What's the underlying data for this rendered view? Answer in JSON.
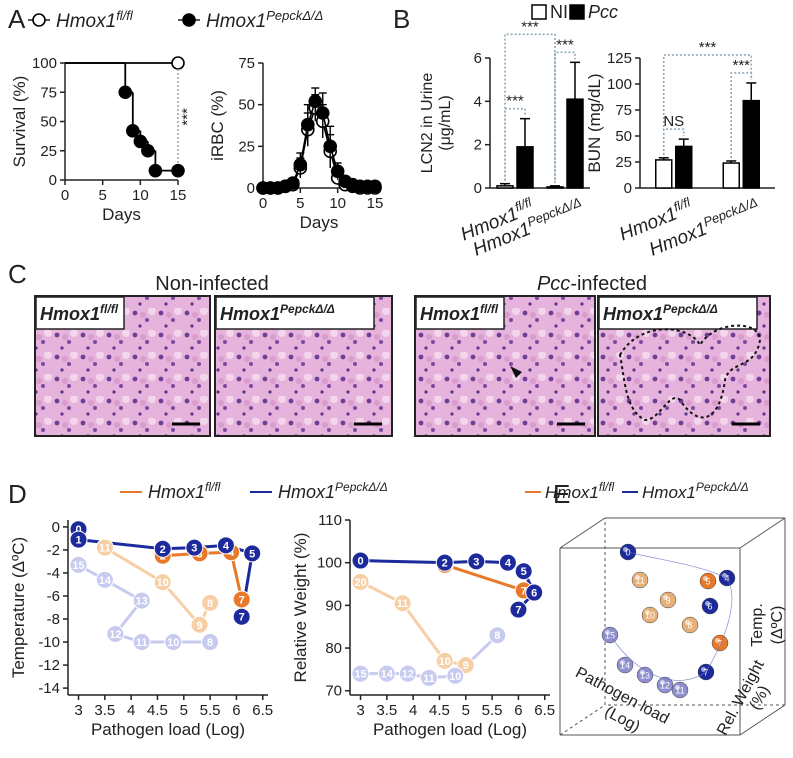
{
  "panel_labels": [
    "A",
    "B",
    "C",
    "D",
    "E"
  ],
  "chart_data": [
    {
      "type": "step",
      "ylabel": "Survival (%)",
      "xlabel": "Days",
      "xlim": [
        0,
        15
      ],
      "xticks": [
        0,
        5,
        10,
        15
      ],
      "ylim": [
        0,
        100
      ],
      "yticks": [
        0,
        25,
        50,
        75,
        100
      ],
      "series": [
        {
          "name": "Hmox1",
          "name_sup": "fl/fl",
          "color": "#000000",
          "marker": "open",
          "x": [
            0,
            15
          ],
          "values": [
            100,
            100
          ]
        },
        {
          "name": "Hmox1",
          "name_sup": "PepckΔ/Δ",
          "color": "#000000",
          "marker": "filled",
          "x": [
            0,
            8,
            9,
            10,
            11,
            12,
            15
          ],
          "values": [
            100,
            75,
            42,
            33,
            25,
            8,
            8
          ]
        }
      ],
      "annotations": [
        "***"
      ]
    },
    {
      "type": "line",
      "ylabel": "iRBC (%)",
      "xlabel": "Days",
      "xlim": [
        0,
        15
      ],
      "xticks": [
        0,
        5,
        10,
        15
      ],
      "ylim": [
        0,
        75
      ],
      "yticks": [
        0,
        25,
        50,
        75
      ],
      "series": [
        {
          "color": "#000000",
          "marker": "open",
          "x": [
            0,
            1,
            2,
            3,
            4,
            5,
            6,
            7,
            8,
            9,
            10,
            11,
            12,
            13,
            14,
            15
          ],
          "values": [
            0,
            0,
            0,
            1,
            2,
            12,
            35,
            48,
            40,
            22,
            6,
            2,
            1,
            0,
            0,
            0
          ],
          "errors": [
            0,
            0,
            0,
            1,
            2,
            6,
            10,
            8,
            10,
            10,
            4,
            2,
            1,
            0,
            0,
            0
          ]
        },
        {
          "color": "#000000",
          "marker": "filled",
          "x": [
            0,
            1,
            2,
            3,
            4,
            5,
            6,
            7,
            8,
            9,
            10,
            11,
            12,
            13,
            14,
            15
          ],
          "values": [
            0,
            0,
            0,
            1,
            3,
            14,
            38,
            52,
            45,
            25,
            10,
            4,
            2,
            1,
            1,
            1
          ],
          "errors": [
            0,
            0,
            0,
            1,
            2,
            7,
            12,
            8,
            12,
            12,
            5,
            2,
            1,
            1,
            0,
            0
          ]
        }
      ]
    },
    {
      "type": "bar",
      "ylabel": "LCN2 in Urine",
      "ylabel2": "(μg/mL)",
      "categories": [
        "Hmox1",
        "Hmox1"
      ],
      "category_sups": [
        "fl/fl",
        "PepckΔ/Δ"
      ],
      "ylim": [
        0,
        6
      ],
      "yticks": [
        0,
        2,
        4,
        6
      ],
      "series": [
        {
          "name": "NI",
          "color": "#ffffff",
          "values": [
            0.1,
            0.05
          ],
          "errors": [
            0.1,
            0.05
          ]
        },
        {
          "name": "Pcc",
          "color": "#000000",
          "values": [
            1.9,
            4.1
          ],
          "errors": [
            1.3,
            1.7
          ]
        }
      ],
      "annotations": [
        "***",
        "***",
        "***"
      ]
    },
    {
      "type": "bar",
      "ylabel": "BUN (mg/dL)",
      "categories": [
        "Hmox1",
        "Hmox1"
      ],
      "category_sups": [
        "fl/fl",
        "PepckΔ/Δ"
      ],
      "ylim": [
        0,
        125
      ],
      "yticks": [
        0,
        25,
        50,
        75,
        100,
        125
      ],
      "series": [
        {
          "color": "#ffffff",
          "values": [
            27,
            24
          ],
          "errors": [
            2,
            2
          ]
        },
        {
          "color": "#000000",
          "values": [
            40,
            84
          ],
          "errors": [
            7,
            17
          ]
        }
      ],
      "annotations": [
        "NS",
        "***",
        "***"
      ]
    },
    {
      "type": "trajectory",
      "ylabel": "Temperature (ΔºC)",
      "xlabel": "Pathogen load (Log)",
      "xlim": [
        2.8,
        6.6
      ],
      "xticks": [
        3,
        3.5,
        4,
        4.5,
        5,
        5.5,
        6,
        6.5
      ],
      "ylim": [
        -14.6,
        0.6
      ],
      "yticks": [
        0,
        -2,
        -4,
        -6,
        -8,
        -10,
        -12,
        -14
      ],
      "series": [
        {
          "color": "#f6cfa5",
          "x": [
            5.5,
            5.3,
            4.6,
            3.5
          ],
          "values": [
            -6.6,
            -8.5,
            -4.8,
            -1.8
          ],
          "days": [
            8,
            9,
            10,
            11
          ]
        },
        {
          "color": "#c7cbef",
          "x": [
            5.5,
            4.8,
            4.2,
            3.7,
            4.2,
            3.5,
            3.0
          ],
          "values": [
            -10,
            -10,
            -10,
            -9.3,
            -6.4,
            -4.6,
            -3.3
          ],
          "days": [
            8,
            10,
            11,
            12,
            13,
            14,
            15
          ]
        },
        {
          "name": "Hmox1",
          "name_sup": "fl/fl",
          "color": "#e8782a",
          "x": [
            4.6,
            5.3,
            5.9,
            6.1
          ],
          "values": [
            -2.5,
            -2.3,
            -2.2,
            -6.3
          ],
          "days": [
            2,
            3,
            4,
            7
          ]
        },
        {
          "name": "Hmox1",
          "name_sup": "PepckΔ/Δ",
          "color": "#1c2a9c",
          "x": [
            3.0,
            3.0,
            4.6,
            5.2,
            5.8,
            6.3,
            6.1
          ],
          "values": [
            -0.2,
            -1.1,
            -1.9,
            -1.8,
            -1.6,
            -2.3,
            -7.8
          ],
          "days": [
            0,
            1,
            2,
            3,
            4,
            5,
            7
          ]
        }
      ]
    },
    {
      "type": "trajectory",
      "ylabel": "Relative Weight (%)",
      "xlabel": "Pathogen load (Log)",
      "xlim": [
        2.8,
        6.6
      ],
      "xticks": [
        3,
        3.5,
        4,
        4.5,
        5,
        5.5,
        6,
        6.5
      ],
      "ylim": [
        69,
        110
      ],
      "yticks": [
        70,
        80,
        90,
        100,
        110
      ],
      "series": [
        {
          "color": "#f6cfa5",
          "x": [
            3.0,
            3.8,
            4.6,
            5.0
          ],
          "values": [
            95.5,
            90.5,
            77,
            76
          ],
          "days": [
            20,
            11,
            10,
            9
          ]
        },
        {
          "color": "#c7cbef",
          "x": [
            5.6,
            4.8,
            4.3,
            3.9,
            3.5,
            3.0
          ],
          "values": [
            83,
            73.5,
            73,
            74,
            74,
            74
          ],
          "days": [
            8,
            10,
            11,
            12,
            14,
            15
          ]
        },
        {
          "color": "#e8782a",
          "x": [
            4.6,
            6.1
          ],
          "values": [
            99.5,
            93.5
          ],
          "days": [
            2,
            7
          ]
        },
        {
          "color": "#1c2a9c",
          "x": [
            3.0,
            4.6,
            5.2,
            5.8,
            6.1,
            6.3,
            6.0
          ],
          "values": [
            100.5,
            100,
            100.3,
            100,
            98,
            93,
            89
          ],
          "days": [
            0,
            2,
            3,
            4,
            5,
            6,
            7
          ]
        }
      ]
    }
  ],
  "panel_c": {
    "title_left": "Non-infected",
    "title_right_italic": "Pcc",
    "title_right": "-infected",
    "images": [
      {
        "label": "Hmox1",
        "label_sup": "fl/fl"
      },
      {
        "label": "Hmox1",
        "label_sup": "PepckΔ/Δ"
      },
      {
        "label": "Hmox1",
        "label_sup": "fl/fl"
      },
      {
        "label": "Hmox1",
        "label_sup": "PepckΔ/Δ"
      }
    ]
  },
  "panel_e": {
    "legend": [
      {
        "name": "Hmox1",
        "name_sup": "fl/fl",
        "color": "#e8782a"
      },
      {
        "name": "Hmox1",
        "name_sup": "PepckΔ/Δ",
        "color": "#1c2a9c"
      }
    ],
    "axis_labels": [
      "Pathogen load",
      "(Log)",
      "Rel. Weight",
      "(%)",
      "Temp.",
      "(ΔºC)"
    ],
    "spheres": [
      {
        "label": "0",
        "color": "#1c2a9c"
      },
      {
        "label": "4",
        "color": "#1c2a9c"
      },
      {
        "label": "5",
        "color": "#e8782a"
      },
      {
        "label": "6",
        "color": "#1c2a9c"
      },
      {
        "label": "7",
        "color": "#e8782a"
      },
      {
        "label": "7",
        "color": "#1c2a9c"
      },
      {
        "label": "15",
        "color": "#8f8fd0"
      },
      {
        "label": "14",
        "color": "#8f8fd0"
      },
      {
        "label": "13",
        "color": "#8f8fd0"
      },
      {
        "label": "12",
        "color": "#8f8fd0"
      },
      {
        "label": "11",
        "color": "#8f8fd0"
      },
      {
        "label": "10",
        "color": "#e6b07a"
      },
      {
        "label": "9",
        "color": "#e6b07a"
      },
      {
        "label": "8",
        "color": "#e6b07a"
      },
      {
        "label": "11",
        "color": "#e6b07a"
      }
    ]
  }
}
